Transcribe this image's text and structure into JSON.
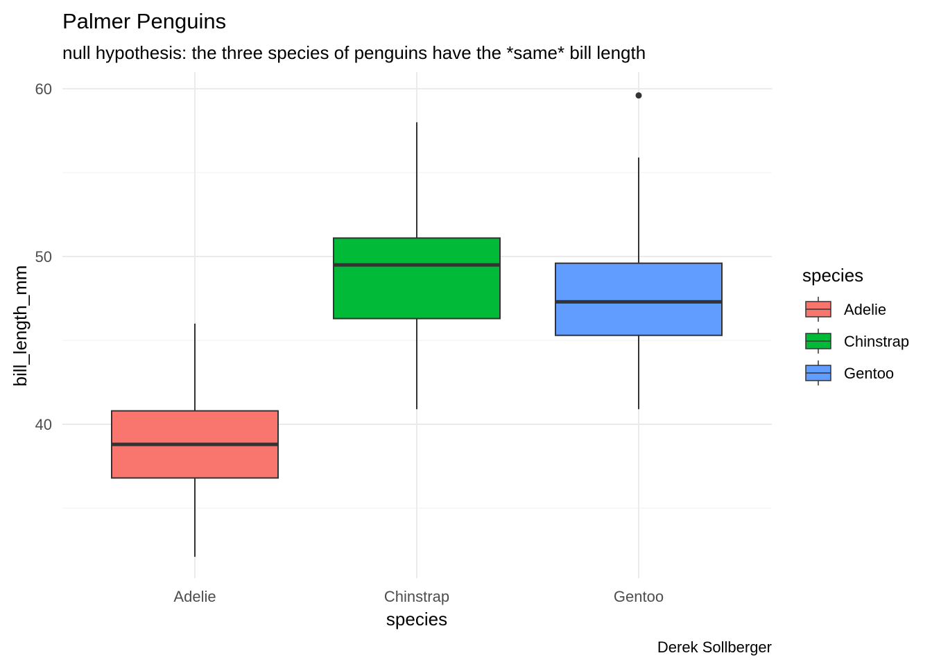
{
  "chart_data": {
    "type": "boxplot",
    "title": "Palmer Penguins",
    "subtitle": "null hypothesis: the three species of penguins have the *same* bill length",
    "xlabel": "species",
    "ylabel": "bill_length_mm",
    "caption": "Derek Sollberger",
    "ylim": [
      31.5,
      61.0
    ],
    "yticks": [
      40,
      50,
      60
    ],
    "yminor_ticks": [
      35,
      45,
      55
    ],
    "grid": true,
    "legend": {
      "title": "species",
      "position": "right"
    },
    "categories": [
      "Adelie",
      "Chinstrap",
      "Gentoo"
    ],
    "boxes": [
      {
        "category": "Adelie",
        "color": "#F8766D",
        "whisker_low": 32.1,
        "q1": 36.8,
        "median": 38.8,
        "q3": 40.8,
        "whisker_high": 46.0,
        "outliers": []
      },
      {
        "category": "Chinstrap",
        "color": "#00BA38",
        "whisker_low": 40.9,
        "q1": 46.3,
        "median": 49.5,
        "q3": 51.1,
        "whisker_high": 58.0,
        "outliers": []
      },
      {
        "category": "Gentoo",
        "color": "#619CFF",
        "whisker_low": 40.9,
        "q1": 45.3,
        "median": 47.3,
        "q3": 49.6,
        "whisker_high": 55.9,
        "outliers": [
          59.6
        ]
      }
    ]
  }
}
